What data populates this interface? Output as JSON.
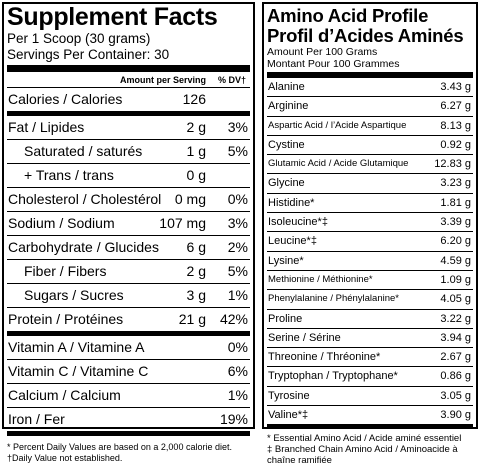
{
  "supplement": {
    "title": "Supplement Facts",
    "serving_size": "Per 1 Scoop (30 grams)",
    "servings_per_container": "Servings Per Container: 30",
    "header_amount": "Amount per Serving",
    "header_dv": "% DV†",
    "rows": [
      {
        "label": "Calories / Calories",
        "amount": "126",
        "dv": ""
      },
      {
        "label": "Fat / Lipides",
        "amount": "2 g",
        "dv": "3%"
      },
      {
        "label": "Saturated / saturés",
        "amount": "1 g",
        "dv": "5%"
      },
      {
        "label": "+ Trans / trans",
        "amount": "0 g",
        "dv": ""
      },
      {
        "label": "Cholesterol / Cholestérol",
        "amount": "0 mg",
        "dv": "0%"
      },
      {
        "label": "Sodium / Sodium",
        "amount": "107 mg",
        "dv": "3%"
      },
      {
        "label": "Carbohydrate / Glucides",
        "amount": "6 g",
        "dv": "2%"
      },
      {
        "label": "Fiber / Fibers",
        "amount": "2 g",
        "dv": "5%"
      },
      {
        "label": "Sugars / Sucres",
        "amount": "3 g",
        "dv": "1%"
      },
      {
        "label": "Protein / Protéines",
        "amount": "21 g",
        "dv": "42%"
      },
      {
        "label": "Vitamin A / Vitamine A",
        "amount": "",
        "dv": "0%"
      },
      {
        "label": "Vitamin C / Vitamine C",
        "amount": "",
        "dv": "6%"
      },
      {
        "label": "Calcium / Calcium",
        "amount": "",
        "dv": "1%"
      },
      {
        "label": "Iron / Fer",
        "amount": "",
        "dv": "19%"
      }
    ],
    "footnote_1": "* Percent Daily Values are based on a 2,000 calorie diet.",
    "footnote_2": "†Daily Value not established."
  },
  "amino": {
    "title_1": "Amino Acid Profile",
    "title_2": "Profil d’Acides Aminés",
    "sub_1": "Amount Per 100 Grams",
    "sub_2": "Montant Pour 100 Grammes",
    "rows": [
      {
        "name": "Alanine",
        "value": "3.43 g"
      },
      {
        "name": "Arginine",
        "value": "6.27 g"
      },
      {
        "name": "Aspartic Acid / l’Acide Aspartique",
        "value": "8.13 g"
      },
      {
        "name": "Cystine",
        "value": "0.92 g"
      },
      {
        "name": "Glutamic Acid / Acide Glutamique",
        "value": "12.83 g"
      },
      {
        "name": "Glycine",
        "value": "3.23 g"
      },
      {
        "name": "Histidine*",
        "value": "1.81 g"
      },
      {
        "name": "Isoleucine*‡",
        "value": "3.39 g"
      },
      {
        "name": "Leucine*‡",
        "value": "6.20 g"
      },
      {
        "name": "Lysine*",
        "value": "4.59 g"
      },
      {
        "name": "Methionine / Méthionine*",
        "value": "1.09 g"
      },
      {
        "name": "Phenylalanine / Phénylalanine*",
        "value": "4.05 g"
      },
      {
        "name": "Proline",
        "value": "3.22 g"
      },
      {
        "name": "Serine / Sérine",
        "value": "3.94 g"
      },
      {
        "name": "Threonine / Thréonine*",
        "value": "2.67 g"
      },
      {
        "name": "Tryptophan / Tryptophane*",
        "value": "0.86 g"
      },
      {
        "name": "Tyrosine",
        "value": "3.05 g"
      },
      {
        "name": "Valine*‡",
        "value": "3.90 g"
      }
    ],
    "footnote_1": "* Essential Amino Acid / Acide aminé essentiel",
    "footnote_2": "‡ Branched Chain Amino Acid / Aminoacide à chaîne ramifiée"
  }
}
